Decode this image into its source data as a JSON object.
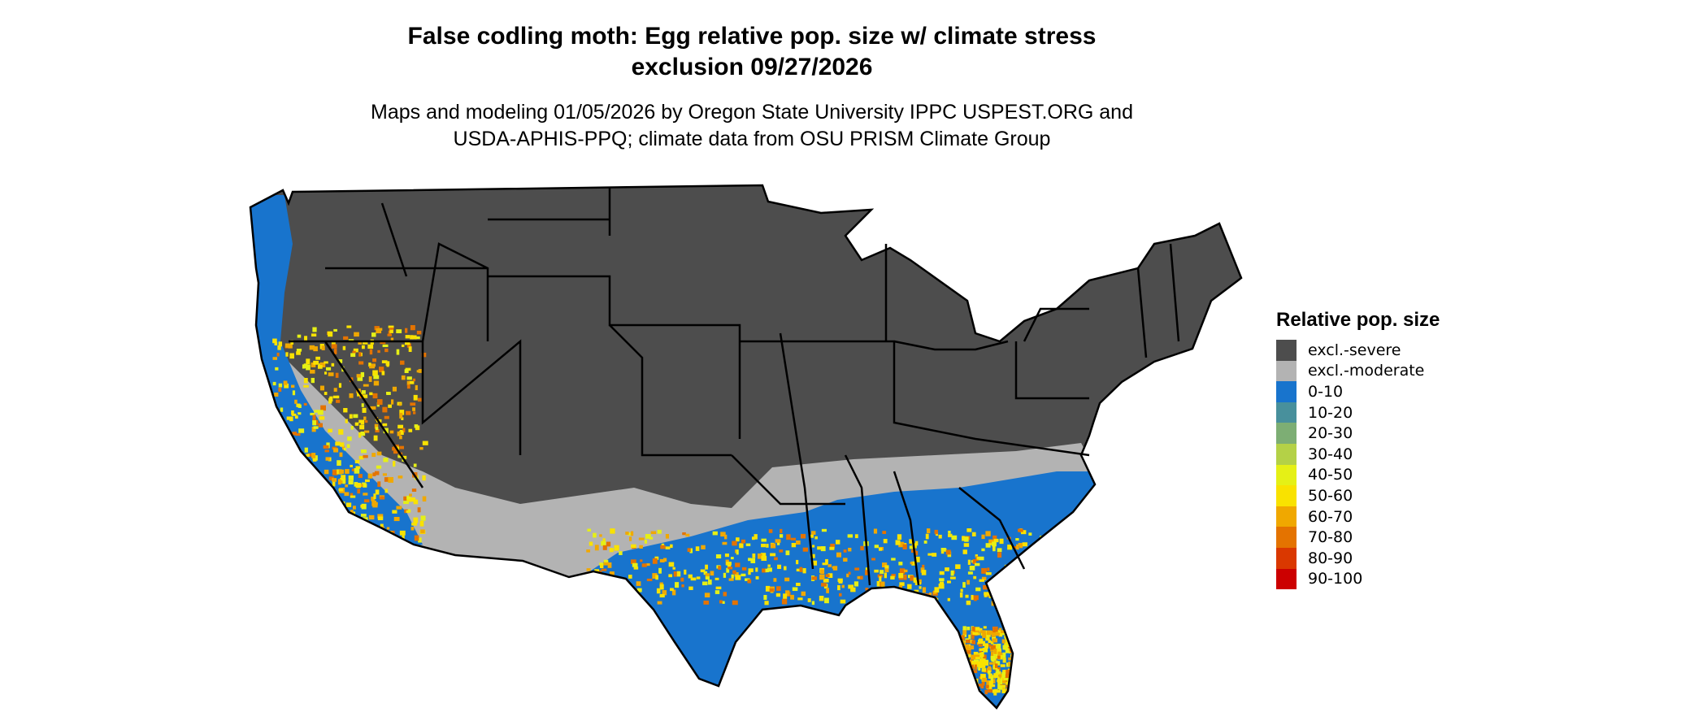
{
  "title_line1": "False codling moth: Egg relative pop. size w/ climate stress",
  "title_line2": "exclusion 09/27/2026",
  "subtitle_line1": "Maps and modeling 01/05/2026 by Oregon State University IPPC USPEST.ORG and",
  "subtitle_line2": "USDA-APHIS-PPQ; climate data from OSU PRISM Climate Group",
  "legend": {
    "title": "Relative pop. size",
    "items": [
      {
        "label": "excl.-severe",
        "color": "#4d4d4d"
      },
      {
        "label": "excl.-moderate",
        "color": "#b3b3b3"
      },
      {
        "label": "0-10",
        "color": "#1874cd"
      },
      {
        "label": "10-20",
        "color": "#48909c"
      },
      {
        "label": "20-30",
        "color": "#7dae74"
      },
      {
        "label": "30-40",
        "color": "#b4d147"
      },
      {
        "label": "40-50",
        "color": "#e5f016"
      },
      {
        "label": "50-60",
        "color": "#f9e200"
      },
      {
        "label": "60-70",
        "color": "#f0a800"
      },
      {
        "label": "70-80",
        "color": "#e47300"
      },
      {
        "label": "80-90",
        "color": "#da3800"
      },
      {
        "label": "90-100",
        "color": "#cc0000"
      }
    ]
  }
}
